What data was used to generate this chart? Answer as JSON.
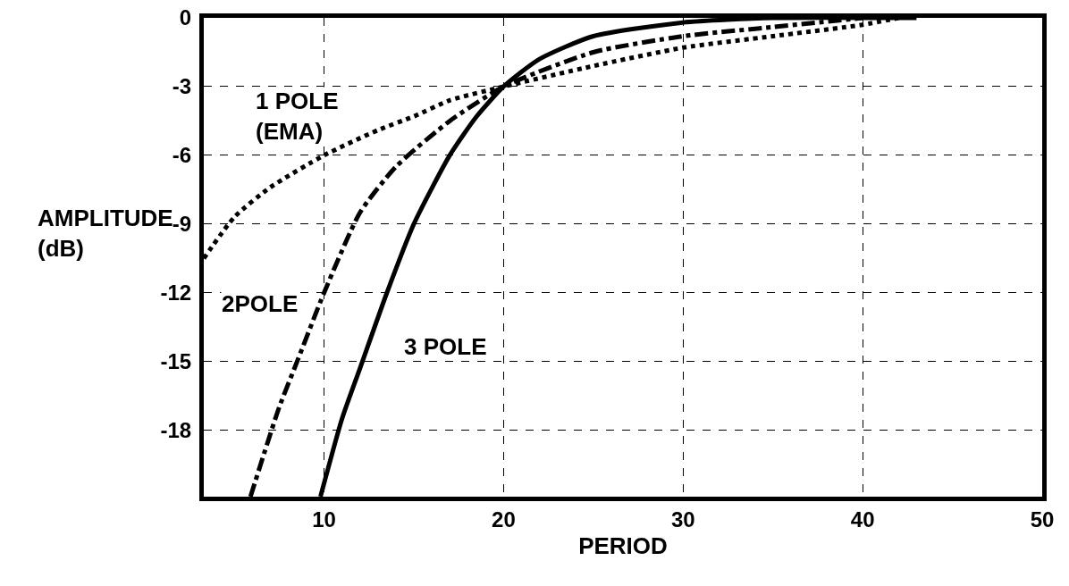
{
  "chart_data": {
    "type": "line",
    "xlabel": "PERIOD",
    "ylabel": "AMPLITUDE\n(dB)",
    "xlim": [
      3.3,
      50
    ],
    "ylim": [
      -20.9,
      0
    ],
    "xticks": [
      10,
      20,
      30,
      40,
      50
    ],
    "yticks": [
      0,
      -3,
      -6,
      -9,
      -12,
      -15,
      -18
    ],
    "grid": true,
    "legend": false,
    "marker": "none",
    "series": [
      {
        "name": "1 POLE\n(EMA)",
        "color": "#000000",
        "line_style": "dotted",
        "x": [
          3.3,
          5,
          7,
          10,
          13,
          15,
          17,
          20,
          25,
          30,
          35,
          40,
          42
        ],
        "values": [
          -10.5,
          -8.7,
          -7.4,
          -6,
          -4.9,
          -4.3,
          -3.6,
          -3,
          -2.1,
          -1.3,
          -0.8,
          -0.3,
          0
        ]
      },
      {
        "name": "2POLE",
        "color": "#000000",
        "line_style": "dashdot",
        "x": [
          5.9,
          7.5,
          8.5,
          10,
          12,
          14,
          17,
          20,
          25,
          30,
          35,
          40
        ],
        "values": [
          -20.9,
          -17,
          -15,
          -12,
          -8.5,
          -6.5,
          -4.5,
          -3,
          -1.5,
          -0.8,
          -0.4,
          0
        ]
      },
      {
        "name": "3 POLE",
        "color": "#000000",
        "line_style": "solid",
        "x": [
          9.8,
          11,
          12,
          13.5,
          15,
          17,
          18.5,
          20,
          22,
          25,
          30,
          35,
          43
        ],
        "values": [
          -20.9,
          -17.5,
          -15.3,
          -12,
          -9,
          -6,
          -4.3,
          -3,
          -1.8,
          -0.8,
          -0.2,
          0,
          0
        ]
      }
    ]
  }
}
